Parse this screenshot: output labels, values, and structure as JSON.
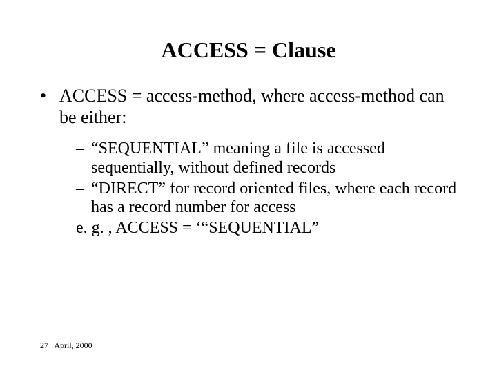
{
  "title": "ACCESS = Clause",
  "bullet": {
    "marker": "•",
    "text": "ACCESS = access-method, where access-method can be either:"
  },
  "sub": {
    "dash": "–",
    "items": [
      "“SEQUENTIAL” meaning a file is accessed sequentially, without defined records",
      "“DIRECT” for record oriented files, where each record has a record number for access"
    ],
    "example": "e. g. , ACCESS = ‘“SEQUENTIAL”"
  },
  "footer": {
    "page": "27",
    "date": "April, 2000"
  }
}
